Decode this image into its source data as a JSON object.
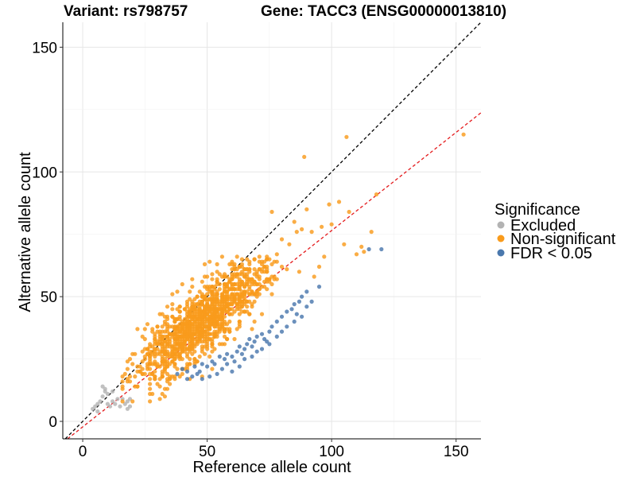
{
  "chart_data": {
    "type": "scatter",
    "title_left": "Variant: rs798757",
    "title_right": "Gene: TACC3 (ENSG00000013810)",
    "xlabel": "Reference allele count",
    "ylabel": "Alternative allele count",
    "xlim": [
      -8,
      160
    ],
    "ylim": [
      -7,
      160
    ],
    "x_ticks": [
      0,
      50,
      100,
      150
    ],
    "y_ticks": [
      0,
      50,
      100,
      150
    ],
    "grid": true,
    "legend": {
      "title": "Significance",
      "position": "right",
      "entries": [
        {
          "label": "Excluded",
          "color": "#b3b3b3"
        },
        {
          "label": "Non-significant",
          "color": "#f99b1c"
        },
        {
          "label": "FDR < 0.05",
          "color": "#4a78ad"
        }
      ]
    },
    "reference_lines": [
      {
        "description": "y = x",
        "slope": 1,
        "intercept": 0,
        "color": "#000000",
        "style": "dashed"
      },
      {
        "description": "fit",
        "slope": 0.787,
        "intercept": -2.2,
        "color": "#e41a1c",
        "style": "dashed"
      }
    ],
    "series": [
      {
        "name": "Excluded",
        "color": "#b3b3b3",
        "points": [
          [
            4,
            5
          ],
          [
            5,
            6
          ],
          [
            6,
            4
          ],
          [
            7,
            8
          ],
          [
            8,
            14
          ],
          [
            8,
            10
          ],
          [
            9,
            12
          ],
          [
            10,
            11
          ],
          [
            10,
            7
          ],
          [
            11,
            6
          ],
          [
            12,
            8
          ],
          [
            13,
            7
          ],
          [
            14,
            9
          ],
          [
            15,
            6
          ],
          [
            16,
            9
          ],
          [
            17,
            7
          ],
          [
            18,
            5
          ],
          [
            18,
            8
          ],
          [
            19,
            6
          ],
          [
            19,
            9
          ],
          [
            9,
            13
          ],
          [
            12,
            12
          ],
          [
            6,
            7
          ]
        ]
      },
      {
        "name": "FDR < 0.05",
        "color": "#4a78ad",
        "points": [
          [
            38,
            19
          ],
          [
            40,
            21
          ],
          [
            42,
            20
          ],
          [
            44,
            18
          ],
          [
            45,
            22
          ],
          [
            47,
            20
          ],
          [
            48,
            23
          ],
          [
            50,
            22
          ],
          [
            52,
            24
          ],
          [
            53,
            23
          ],
          [
            55,
            26
          ],
          [
            57,
            25
          ],
          [
            58,
            27
          ],
          [
            60,
            26
          ],
          [
            62,
            28
          ],
          [
            63,
            30
          ],
          [
            65,
            29
          ],
          [
            66,
            31
          ],
          [
            67,
            33
          ],
          [
            68,
            30
          ],
          [
            69,
            32
          ],
          [
            70,
            34
          ],
          [
            72,
            35
          ],
          [
            73,
            33
          ],
          [
            75,
            36
          ],
          [
            76,
            38
          ],
          [
            78,
            40
          ],
          [
            80,
            42
          ],
          [
            82,
            44
          ],
          [
            84,
            45
          ],
          [
            85,
            47
          ],
          [
            87,
            48
          ],
          [
            88,
            50
          ],
          [
            90,
            52
          ],
          [
            95,
            54
          ],
          [
            115,
            69
          ],
          [
            120,
            69
          ],
          [
            60,
            20
          ],
          [
            63,
            22
          ],
          [
            58,
            23
          ],
          [
            65,
            25
          ],
          [
            68,
            26
          ],
          [
            72,
            29
          ],
          [
            75,
            31
          ],
          [
            78,
            34
          ],
          [
            82,
            38
          ],
          [
            85,
            40
          ],
          [
            88,
            42
          ],
          [
            90,
            46
          ],
          [
            92,
            48
          ],
          [
            70,
            28
          ],
          [
            74,
            32
          ],
          [
            80,
            36
          ],
          [
            86,
            43
          ],
          [
            48,
            17
          ],
          [
            51,
            18
          ],
          [
            54,
            19
          ],
          [
            56,
            21
          ],
          [
            61,
            24
          ],
          [
            64,
            27
          ],
          [
            42,
            17
          ],
          [
            46,
            19
          ]
        ]
      },
      {
        "name": "Non-significant",
        "color": "#f99b1c",
        "points": "generated"
      }
    ]
  }
}
